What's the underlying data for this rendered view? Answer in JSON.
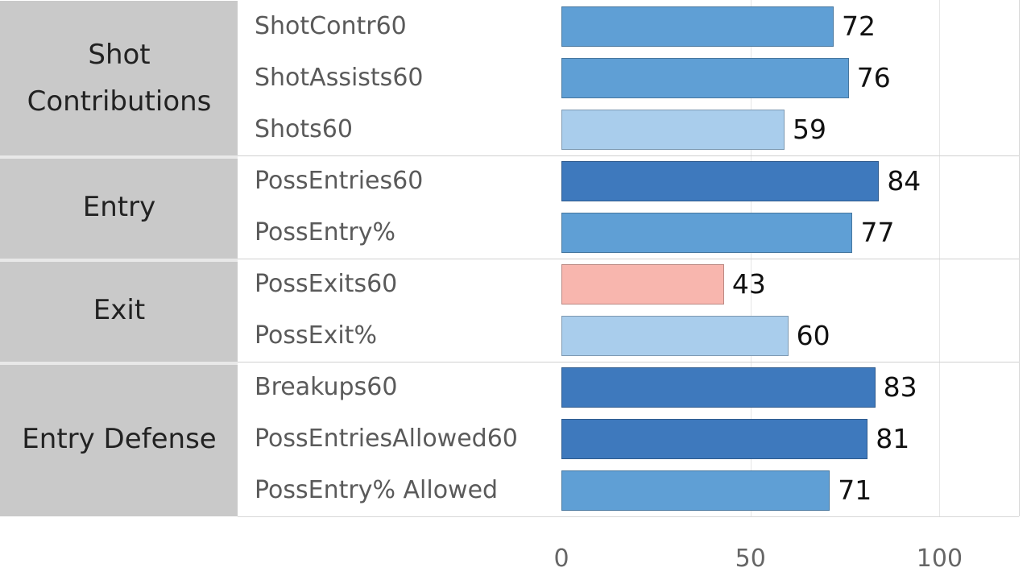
{
  "chart_data": {
    "type": "bar",
    "orientation": "horizontal",
    "groups": [
      {
        "label": "Shot Contributions",
        "categories": [
          "ShotContr60",
          "ShotAssists60",
          "Shots60"
        ],
        "values": [
          72,
          76,
          59
        ],
        "colors": [
          "#5f9fd5",
          "#5f9fd5",
          "#a9cdec"
        ]
      },
      {
        "label": "Entry",
        "categories": [
          "PossEntries60",
          "PossEntry%"
        ],
        "values": [
          84,
          77
        ],
        "colors": [
          "#3e79bd",
          "#5f9fd5"
        ]
      },
      {
        "label": "Exit",
        "categories": [
          "PossExits60",
          "PossExit%"
        ],
        "values": [
          43,
          60
        ],
        "colors": [
          "#f8b6ae",
          "#a9cdec"
        ]
      },
      {
        "label": "Entry Defense",
        "categories": [
          "Breakups60",
          "PossEntriesAllowed60",
          "PossEntry% Allowed"
        ],
        "values": [
          83,
          81,
          71
        ],
        "colors": [
          "#3e79bd",
          "#3e79bd",
          "#5f9fd5"
        ]
      }
    ],
    "xlim": [
      0,
      121
    ],
    "xticks": [
      0,
      50,
      100
    ],
    "grid": true
  }
}
